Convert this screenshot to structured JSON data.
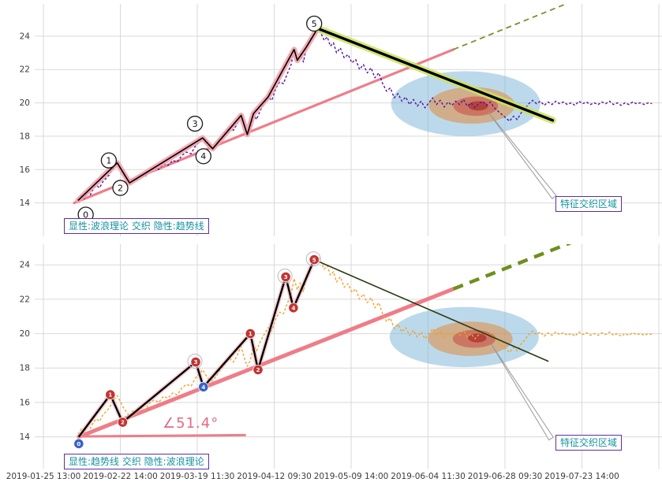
{
  "figure": {
    "background": "#ffffff",
    "grid_color": "#d9d9d9",
    "tick_label_color": "#3c3c3c"
  },
  "chart_data": {
    "type": "line",
    "x_unit": "x tick index (one unit = one x gridline)",
    "x_tick_labels": [
      "2019-01-25 13:00",
      "2019-02-22 14:00",
      "2019-03-19 11:30",
      "2019-04-12 09:30",
      "2019-05-09 14:00",
      "2019-06-04 11:30",
      "2019-06-28 09:30",
      "2019-07-23 14:00"
    ],
    "y_ticks": [
      14,
      16,
      18,
      20,
      22,
      24
    ],
    "price_series": [
      [
        0.45,
        14.15
      ],
      [
        0.49,
        14.45
      ],
      [
        0.53,
        14.25
      ],
      [
        0.57,
        14.65
      ],
      [
        0.61,
        14.5
      ],
      [
        0.65,
        14.85
      ],
      [
        0.69,
        15.05
      ],
      [
        0.73,
        14.9
      ],
      [
        0.77,
        15.25
      ],
      [
        0.81,
        15.45
      ],
      [
        0.85,
        15.65
      ],
      [
        0.89,
        15.95
      ],
      [
        0.93,
        16.25
      ],
      [
        0.96,
        16.4
      ],
      [
        1.0,
        16.05
      ],
      [
        1.04,
        15.7
      ],
      [
        1.08,
        15.45
      ],
      [
        1.12,
        15.2
      ],
      [
        1.16,
        15.5
      ],
      [
        1.21,
        15.35
      ],
      [
        1.26,
        15.7
      ],
      [
        1.32,
        15.55
      ],
      [
        1.38,
        15.95
      ],
      [
        1.44,
        16.15
      ],
      [
        1.5,
        16.0
      ],
      [
        1.56,
        16.35
      ],
      [
        1.62,
        16.25
      ],
      [
        1.68,
        16.55
      ],
      [
        1.74,
        16.45
      ],
      [
        1.8,
        16.85
      ],
      [
        1.86,
        17.05
      ],
      [
        1.92,
        16.95
      ],
      [
        1.98,
        17.45
      ],
      [
        2.03,
        17.65
      ],
      [
        2.07,
        17.9
      ],
      [
        2.11,
        17.6
      ],
      [
        2.15,
        17.35
      ],
      [
        2.2,
        17.25
      ],
      [
        2.25,
        17.55
      ],
      [
        2.3,
        17.9
      ],
      [
        2.36,
        18.25
      ],
      [
        2.42,
        18.55
      ],
      [
        2.47,
        18.35
      ],
      [
        2.52,
        18.75
      ],
      [
        2.57,
        19.25
      ],
      [
        2.61,
        18.6
      ],
      [
        2.65,
        18.1
      ],
      [
        2.69,
        18.45
      ],
      [
        2.73,
        19.35
      ],
      [
        2.77,
        19.0
      ],
      [
        2.82,
        19.55
      ],
      [
        2.87,
        19.95
      ],
      [
        2.92,
        20.35
      ],
      [
        2.97,
        20.15
      ],
      [
        3.02,
        20.85
      ],
      [
        3.07,
        21.25
      ],
      [
        3.12,
        21.15
      ],
      [
        3.17,
        21.75
      ],
      [
        3.22,
        22.3
      ],
      [
        3.26,
        23.2
      ],
      [
        3.3,
        22.55
      ],
      [
        3.34,
        22.95
      ],
      [
        3.38,
        22.45
      ],
      [
        3.42,
        23.35
      ],
      [
        3.47,
        23.85
      ],
      [
        3.52,
        24.15
      ],
      [
        3.57,
        24.5
      ],
      [
        3.61,
        24.15
      ],
      [
        3.65,
        23.75
      ],
      [
        3.69,
        23.95
      ],
      [
        3.73,
        23.4
      ],
      [
        3.77,
        23.6
      ],
      [
        3.81,
        23.0
      ],
      [
        3.86,
        23.3
      ],
      [
        3.91,
        22.7
      ],
      [
        3.96,
        22.9
      ],
      [
        4.01,
        22.4
      ],
      [
        4.06,
        22.6
      ],
      [
        4.11,
        22.0
      ],
      [
        4.16,
        22.3
      ],
      [
        4.21,
        21.8
      ],
      [
        4.26,
        22.1
      ],
      [
        4.31,
        21.5
      ],
      [
        4.36,
        21.8
      ],
      [
        4.41,
        21.15
      ],
      [
        4.46,
        20.7
      ],
      [
        4.51,
        20.9
      ],
      [
        4.56,
        20.3
      ],
      [
        4.61,
        20.55
      ],
      [
        4.66,
        20.1
      ],
      [
        4.71,
        20.35
      ],
      [
        4.76,
        19.9
      ],
      [
        4.81,
        20.2
      ],
      [
        4.86,
        19.8
      ],
      [
        4.91,
        20.1
      ],
      [
        4.96,
        19.7
      ],
      [
        5.01,
        20.0
      ],
      [
        5.06,
        20.3
      ],
      [
        5.11,
        19.9
      ],
      [
        5.16,
        20.15
      ],
      [
        5.21,
        19.75
      ],
      [
        5.26,
        20.05
      ],
      [
        5.31,
        19.85
      ],
      [
        5.36,
        20.1
      ],
      [
        5.41,
        19.9
      ],
      [
        5.46,
        20.2
      ],
      [
        5.51,
        19.8
      ],
      [
        5.56,
        20.0
      ],
      [
        5.61,
        19.7
      ],
      [
        5.66,
        19.95
      ],
      [
        5.71,
        20.1
      ],
      [
        5.76,
        19.85
      ],
      [
        5.81,
        20.05
      ],
      [
        5.86,
        19.7
      ],
      [
        5.91,
        19.5
      ],
      [
        5.96,
        19.3
      ],
      [
        6.01,
        19.1
      ],
      [
        6.06,
        18.9
      ],
      [
        6.11,
        19.2
      ],
      [
        6.16,
        19.0
      ],
      [
        6.21,
        19.4
      ],
      [
        6.26,
        19.65
      ],
      [
        6.31,
        19.95
      ],
      [
        6.36,
        20.15
      ],
      [
        6.41,
        19.95
      ],
      [
        6.46,
        20.1
      ],
      [
        6.51,
        19.85
      ],
      [
        6.56,
        20.05
      ],
      [
        6.61,
        19.9
      ],
      [
        6.66,
        20.1
      ],
      [
        6.71,
        19.95
      ],
      [
        6.76,
        20.05
      ],
      [
        6.81,
        19.9
      ],
      [
        6.86,
        20.0
      ],
      [
        6.91,
        19.85
      ],
      [
        6.96,
        20.1
      ],
      [
        7.01,
        19.95
      ],
      [
        7.06,
        20.05
      ],
      [
        7.11,
        19.9
      ],
      [
        7.16,
        20.0
      ],
      [
        7.21,
        19.9
      ],
      [
        7.26,
        20.05
      ],
      [
        7.31,
        19.95
      ],
      [
        7.36,
        20.1
      ],
      [
        7.41,
        19.9
      ],
      [
        7.46,
        20.0
      ],
      [
        7.51,
        19.85
      ],
      [
        7.56,
        20.0
      ],
      [
        7.61,
        19.9
      ],
      [
        7.66,
        20.05
      ],
      [
        7.71,
        19.95
      ],
      [
        7.76,
        20.0
      ],
      [
        7.81,
        19.9
      ],
      [
        7.86,
        20.0
      ],
      [
        7.91,
        19.95
      ]
    ],
    "panels": [
      {
        "name": "wave-theory-explicit",
        "legend": "显性:波浪理论 交织 隐性:趋势线",
        "annotation": "特征交织区域",
        "ylim": [
          12.0,
          25.93
        ],
        "price_color": "#55149b",
        "price_dash": "3 2.4",
        "trend": {
          "from": [
            0.4,
            14.0
          ],
          "to": [
            5.33,
            23.2
          ],
          "color": "#ee7d88",
          "width": 3.2
        },
        "trend_extension": {
          "from": [
            5.33,
            23.2
          ],
          "to": [
            7.9,
            28.0
          ],
          "color": "#7d8f2a",
          "width": 1.8,
          "dash": "7 5"
        },
        "wave_path": [
          [
            0.45,
            14.15
          ],
          [
            0.96,
            16.4
          ],
          [
            1.12,
            15.2
          ],
          [
            2.07,
            17.9
          ],
          [
            2.2,
            17.25
          ],
          [
            2.57,
            19.25
          ],
          [
            2.65,
            18.1
          ],
          [
            2.73,
            19.35
          ],
          [
            2.92,
            20.35
          ],
          [
            3.26,
            23.2
          ],
          [
            3.3,
            22.55
          ],
          [
            3.42,
            23.35
          ],
          [
            3.57,
            24.5
          ]
        ],
        "wave_band": {
          "color": "#f2a2ac",
          "width": 7
        },
        "decline_line": {
          "from": [
            3.57,
            24.45
          ],
          "to": [
            6.62,
            18.95
          ],
          "color": "#000000",
          "width": 3.4,
          "glow_color": "#cde25f",
          "glow_width": 9
        },
        "wave_markers": [
          {
            "label": "0",
            "x": 0.55,
            "y": 13.3
          },
          {
            "label": "1",
            "x": 0.85,
            "y": 16.55
          },
          {
            "label": "2",
            "x": 1.0,
            "y": 14.9
          },
          {
            "label": "3",
            "x": 1.97,
            "y": 18.75
          },
          {
            "label": "4",
            "x": 2.08,
            "y": 16.8
          },
          {
            "label": "5",
            "x": 3.52,
            "y": 24.75
          }
        ],
        "ellipses": [
          {
            "cx": 5.49,
            "cy": 19.95,
            "rx": 0.97,
            "ry": 1.95,
            "fill": "#7ab4d8",
            "opacity": 0.5
          },
          {
            "cx": 5.57,
            "cy": 19.85,
            "rx": 0.56,
            "ry": 1.1,
            "fill": "#e08a3c",
            "opacity": 0.55
          },
          {
            "cx": 5.62,
            "cy": 19.8,
            "rx": 0.29,
            "ry": 0.58,
            "fill": "#c85048",
            "opacity": 0.6
          },
          {
            "cx": 5.65,
            "cy": 19.82,
            "rx": 0.13,
            "ry": 0.28,
            "fill": "#b03a34",
            "opacity": 0.85
          }
        ],
        "arrow": {
          "tip": [
            5.78,
            19.45
          ],
          "tail": [
            6.64,
            14.35
          ]
        }
      },
      {
        "name": "trend-line-explicit",
        "legend": "显性:趋势线 交织 隐性:波浪理论",
        "annotation": "特征交织区域",
        "angle_label": "∠51.4°",
        "ylim": [
          12.15,
          25.2
        ],
        "price_color": "#f0a22e",
        "price_dash": "3 2.4",
        "trend": {
          "from": [
            0.46,
            14.0
          ],
          "to": [
            5.33,
            22.6
          ],
          "color": "#ee7d88",
          "width": 5
        },
        "trend_extension": {
          "from": [
            5.33,
            22.6
          ],
          "to": [
            7.6,
            26.6
          ],
          "color": "#6f8f1f",
          "width": 4.5,
          "dash": "13 9"
        },
        "angle_base": {
          "from": [
            0.46,
            14.02
          ],
          "to": [
            2.62,
            14.1
          ],
          "color": "#ee7d88",
          "width": 3
        },
        "wave_path": [
          [
            0.46,
            14.0
          ],
          [
            0.87,
            16.45
          ],
          [
            1.03,
            14.85
          ],
          [
            1.98,
            18.35
          ],
          [
            2.08,
            16.9
          ],
          [
            2.69,
            20.0
          ],
          [
            2.79,
            17.9
          ],
          [
            3.15,
            23.3
          ],
          [
            3.25,
            21.5
          ],
          [
            3.52,
            24.3
          ]
        ],
        "wave_band": {
          "color": "#f2a2ac",
          "width": 6
        },
        "decline_line": {
          "from": [
            3.52,
            24.3
          ],
          "to": [
            6.56,
            18.4
          ],
          "color": "#2a3a12",
          "width": 1.6
        },
        "wave_markers": [
          {
            "label": "0",
            "x": 0.46,
            "y": 13.6,
            "color": "#3a62c9"
          },
          {
            "label": "1",
            "x": 0.87,
            "y": 16.45,
            "color": "#c23531"
          },
          {
            "label": "2",
            "x": 1.03,
            "y": 14.85,
            "color": "#c23531"
          },
          {
            "label": "3",
            "x": 1.98,
            "y": 18.35,
            "color": "#c23531",
            "halo": true
          },
          {
            "label": "4",
            "x": 2.08,
            "y": 16.9,
            "color": "#3a62c9"
          },
          {
            "label": "1",
            "x": 2.69,
            "y": 20.0,
            "color": "#c23531"
          },
          {
            "label": "2",
            "x": 2.79,
            "y": 17.9,
            "color": "#c23531"
          },
          {
            "label": "3",
            "x": 3.15,
            "y": 23.3,
            "color": "#c23531",
            "halo": true
          },
          {
            "label": "4",
            "x": 3.25,
            "y": 21.5,
            "color": "#c23531"
          },
          {
            "label": "5",
            "x": 3.52,
            "y": 24.3,
            "color": "#c23531",
            "halo": true
          }
        ],
        "ellipses": [
          {
            "cx": 5.47,
            "cy": 19.8,
            "rx": 0.97,
            "ry": 1.75,
            "fill": "#7ab4d8",
            "opacity": 0.5
          },
          {
            "cx": 5.55,
            "cy": 19.7,
            "rx": 0.55,
            "ry": 1.0,
            "fill": "#e08a3c",
            "opacity": 0.55
          },
          {
            "cx": 5.6,
            "cy": 19.7,
            "rx": 0.28,
            "ry": 0.52,
            "fill": "#c85048",
            "opacity": 0.6
          },
          {
            "cx": 5.64,
            "cy": 19.75,
            "rx": 0.12,
            "ry": 0.26,
            "fill": "#b03a34",
            "opacity": 0.85
          }
        ],
        "arrow": {
          "tip": [
            5.82,
            19.4
          ],
          "tail": [
            6.6,
            13.9
          ]
        }
      }
    ]
  }
}
